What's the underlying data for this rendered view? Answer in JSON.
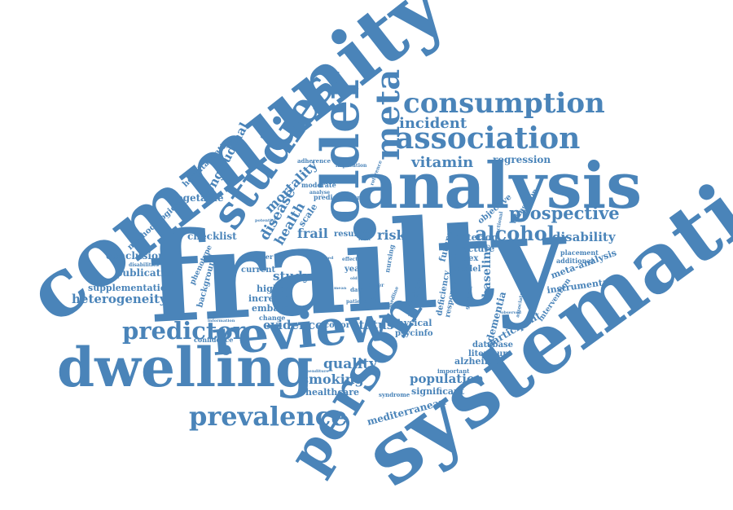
{
  "accent_color": "#4a84b9",
  "words": [
    {
      "text": "frailty",
      "size": 10
    },
    {
      "text": "systematic",
      "size": 9
    },
    {
      "text": "community",
      "size": 9
    },
    {
      "text": "analysis",
      "size": 8
    },
    {
      "text": "review",
      "size": 7
    },
    {
      "text": "dwelling",
      "size": 7
    },
    {
      "text": "person",
      "size": 7
    },
    {
      "text": "older",
      "size": 7
    },
    {
      "text": "studies",
      "size": 6
    },
    {
      "text": "association",
      "size": 5
    },
    {
      "text": "consumption",
      "size": 5
    },
    {
      "text": "meta",
      "size": 5
    },
    {
      "text": "prevalence",
      "size": 4
    },
    {
      "text": "predictor",
      "size": 4
    },
    {
      "text": "alcohol",
      "size": 4
    },
    {
      "text": "prospective",
      "size": 4
    },
    {
      "text": "longitudinal",
      "size": 3
    },
    {
      "text": "incident",
      "size": 3
    },
    {
      "text": "vitamin",
      "size": 3
    },
    {
      "text": "disease",
      "size": 3
    },
    {
      "text": "mortality",
      "size": 3
    },
    {
      "text": "health",
      "size": 3
    },
    {
      "text": "quality",
      "size": 3
    },
    {
      "text": "smoking",
      "size": 3
    },
    {
      "text": "evidence",
      "size": 3
    },
    {
      "text": "status",
      "size": 3
    },
    {
      "text": "population",
      "size": 3
    },
    {
      "text": "disability",
      "size": 3
    },
    {
      "text": "risk",
      "size": 3
    },
    {
      "text": "frail",
      "size": 3
    },
    {
      "text": "study",
      "size": 3
    },
    {
      "text": "heterogeneity",
      "size": 2
    },
    {
      "text": "supplementation",
      "size": 2
    },
    {
      "text": "publication",
      "size": 2
    },
    {
      "text": "conclusion",
      "size": 2
    },
    {
      "text": "checklist",
      "size": 2
    },
    {
      "text": "vegetable",
      "size": 2
    },
    {
      "text": "hospitalisation",
      "size": 2
    },
    {
      "text": "methodological",
      "size": 2
    },
    {
      "text": "regression",
      "size": 2
    },
    {
      "text": "baseline",
      "size": 2
    },
    {
      "text": "dementia",
      "size": 2
    },
    {
      "text": "participant",
      "size": 2
    },
    {
      "text": "instrumental",
      "size": 2
    },
    {
      "text": "meta-analysis",
      "size": 2
    },
    {
      "text": "mediterranean",
      "size": 2
    },
    {
      "text": "healthcare",
      "size": 2
    },
    {
      "text": "alzheimer",
      "size": 2
    },
    {
      "text": "database",
      "size": 2
    },
    {
      "text": "literature",
      "size": 2
    },
    {
      "text": "significant",
      "size": 2
    },
    {
      "text": "criterion",
      "size": 2
    },
    {
      "text": "index",
      "size": 2
    },
    {
      "text": "model",
      "size": 2
    },
    {
      "text": "fracture",
      "size": 2
    },
    {
      "text": "physical",
      "size": 2
    },
    {
      "text": "psycinfo",
      "size": 2
    },
    {
      "text": "cohort",
      "size": 2
    },
    {
      "text": "higher",
      "size": 2
    },
    {
      "text": "increase",
      "size": 2
    },
    {
      "text": "embase",
      "size": 2
    },
    {
      "text": "current",
      "size": 2
    },
    {
      "text": "result",
      "size": 2
    },
    {
      "text": "year",
      "size": 2
    },
    {
      "text": "scale",
      "size": 2
    },
    {
      "text": "background",
      "size": 2
    },
    {
      "text": "phenotype",
      "size": 2
    },
    {
      "text": "intervention",
      "size": 2
    },
    {
      "text": "transition",
      "size": 2
    },
    {
      "text": "objective",
      "size": 2
    },
    {
      "text": "activities",
      "size": 2
    },
    {
      "text": "deficiency",
      "size": 2
    },
    {
      "text": "response",
      "size": 2
    },
    {
      "text": "future",
      "size": 2
    },
    {
      "text": "additional",
      "size": 1
    },
    {
      "text": "placement",
      "size": 1
    },
    {
      "text": "confidence",
      "size": 1
    },
    {
      "text": "syndrome",
      "size": 1
    },
    {
      "text": "important",
      "size": 1
    },
    {
      "text": "smoker",
      "size": 1
    },
    {
      "text": "change",
      "size": 1
    },
    {
      "text": "moderate",
      "size": 1
    },
    {
      "text": "predict",
      "size": 1
    },
    {
      "text": "adherence",
      "size": 1
    },
    {
      "text": "implication",
      "size": 1
    },
    {
      "text": "reference",
      "size": 1
    },
    {
      "text": "nursing",
      "size": 1
    },
    {
      "text": "measure",
      "size": 1
    },
    {
      "text": "woman",
      "size": 1
    },
    {
      "text": "fruit",
      "size": 1
    },
    {
      "text": "ratio",
      "size": 1
    },
    {
      "text": "data",
      "size": 1
    },
    {
      "text": "patient",
      "size": 1
    },
    {
      "text": "information",
      "size": 1
    },
    {
      "text": "expenditure",
      "size": 1
    },
    {
      "text": "potential",
      "size": 1
    },
    {
      "text": "effect",
      "size": 1
    },
    {
      "text": "lower",
      "size": 1
    },
    {
      "text": "medline",
      "size": 1
    },
    {
      "text": "factor",
      "size": 1
    },
    {
      "text": "disabilities",
      "size": 1
    },
    {
      "text": "geriatric",
      "size": 1
    },
    {
      "text": "sectional",
      "size": 1
    },
    {
      "text": "associated",
      "size": 1
    },
    {
      "text": "observed",
      "size": 1
    },
    {
      "text": "analyse",
      "size": 1
    },
    {
      "text": "mean",
      "size": 1
    },
    {
      "text": "aged",
      "size": 1
    },
    {
      "text": "old",
      "size": 1
    }
  ]
}
